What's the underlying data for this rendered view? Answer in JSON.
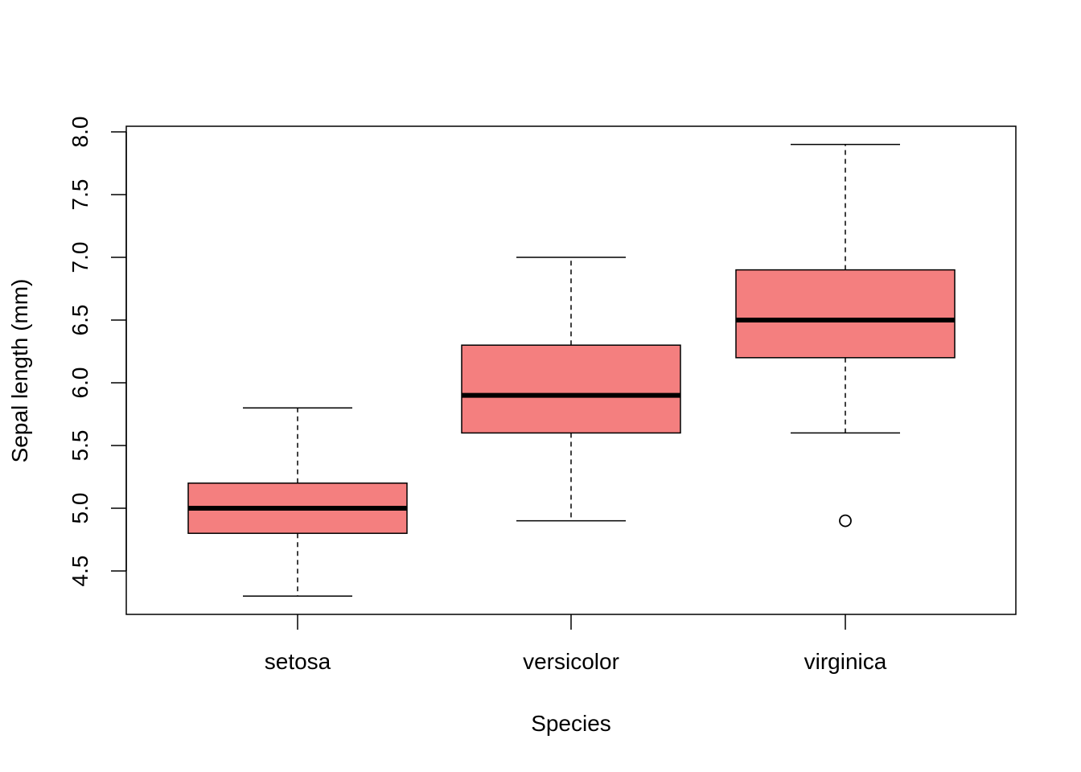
{
  "chart_data": {
    "type": "boxplot",
    "title": "",
    "xlabel": "Species",
    "ylabel": "Sepal length (mm)",
    "ylim": [
      4.3,
      8.0
    ],
    "yticks": [
      "4.5",
      "5.0",
      "5.5",
      "6.0",
      "6.5",
      "7.0",
      "7.5",
      "8.0"
    ],
    "categories": [
      "setosa",
      "versicolor",
      "virginica"
    ],
    "box_color": "#F47F7F",
    "line_color": "#000000",
    "grid": false,
    "legend": "none",
    "boxes": [
      {
        "category": "setosa",
        "whisker_low": 4.3,
        "q1": 4.8,
        "median": 5.0,
        "q3": 5.2,
        "whisker_high": 5.8,
        "outliers": []
      },
      {
        "category": "versicolor",
        "whisker_low": 4.9,
        "q1": 5.6,
        "median": 5.9,
        "q3": 6.3,
        "whisker_high": 7.0,
        "outliers": []
      },
      {
        "category": "virginica",
        "whisker_low": 5.6,
        "q1": 6.2,
        "median": 6.5,
        "q3": 6.9,
        "whisker_high": 7.9,
        "outliers": [
          4.9
        ]
      }
    ]
  }
}
